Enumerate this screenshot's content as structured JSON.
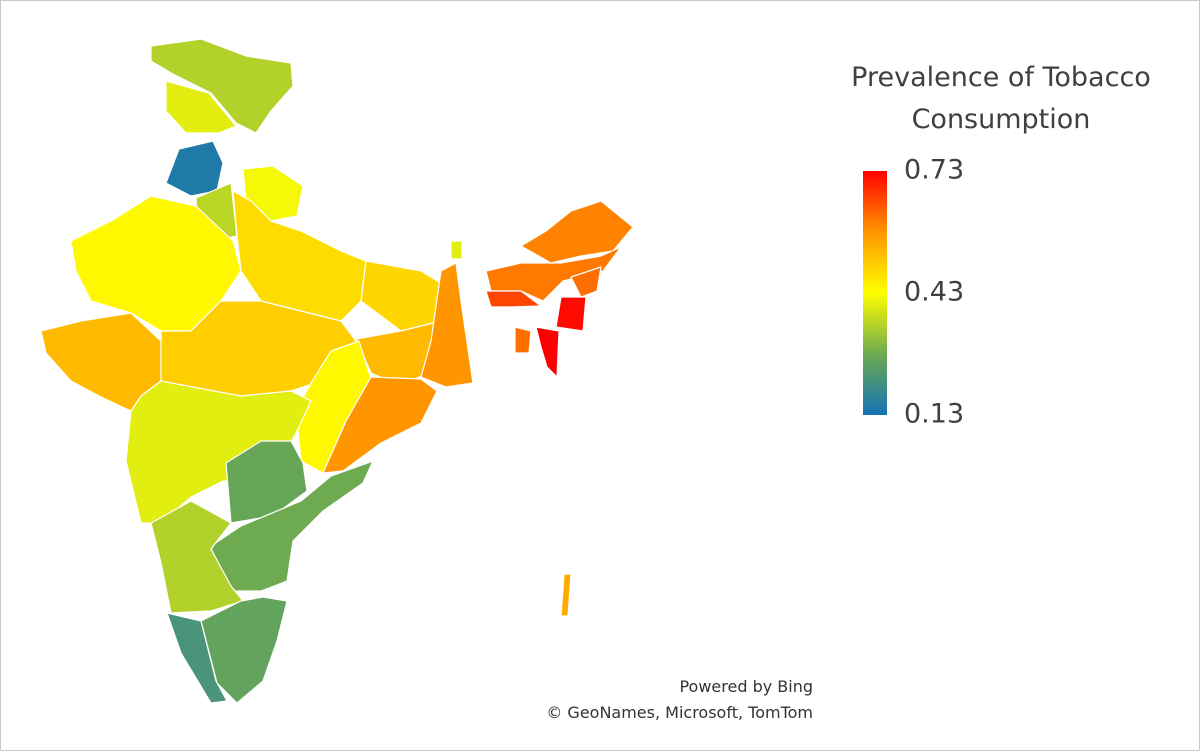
{
  "legend": {
    "title": "Prevalence of Tobacco Consumption",
    "max": 0.73,
    "mid": 0.43,
    "min": 0.13
  },
  "regions": [
    0.35,
    0.4,
    0.15,
    0.42,
    0.36,
    0.44,
    0.53,
    0.48,
    0.5,
    0.49,
    0.53,
    0.58,
    0.44,
    0.58,
    0.4,
    0.27,
    0.28,
    0.35,
    0.22,
    0.26,
    0.6,
    0.61,
    0.66,
    0.62,
    0.72,
    0.73,
    0.62,
    0.4,
    0.55
  ],
  "attribution": {
    "powered": "Powered by Bing",
    "credits": "© GeoNames, Microsoft, TomTom"
  }
}
